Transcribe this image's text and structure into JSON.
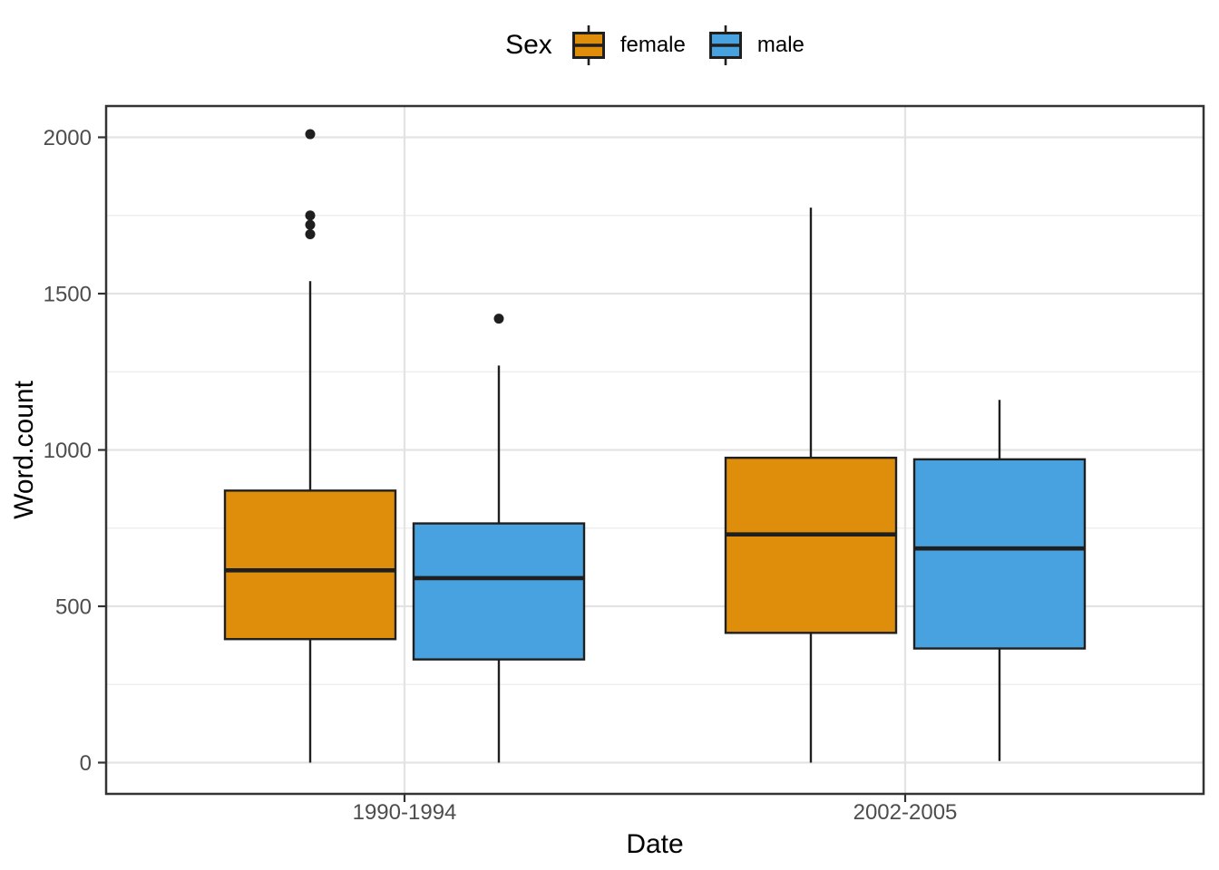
{
  "legend": {
    "title": "Sex",
    "position": "top",
    "items": [
      {
        "label": "female",
        "color": "#DF8E0C"
      },
      {
        "label": "male",
        "color": "#48A2DF"
      }
    ]
  },
  "axes": {
    "x": {
      "title": "Date",
      "categories": [
        "1990-1994",
        "2002-2005"
      ]
    },
    "y": {
      "title": "Word.count",
      "ticks": [
        0,
        500,
        1000,
        1500,
        2000
      ],
      "minor_ticks": [
        250,
        750,
        1250,
        1750
      ],
      "range": [
        -95,
        2100
      ]
    }
  },
  "colors": {
    "female_fill": "#DF8E0C",
    "male_fill": "#48A2DF",
    "box_stroke": "#1F1F1F",
    "outlier": "#1F1F1F",
    "grid_major": "#E3E3E3",
    "grid_minor": "#EFEFEF",
    "panel_border": "#333333",
    "tick_mark": "#333333",
    "axis_text": "#4D4D4D",
    "axis_title": "#000000",
    "background": "#FFFFFF"
  },
  "chart_data": {
    "type": "boxplot",
    "title": "",
    "xlabel": "Date",
    "ylabel": "Word.count",
    "categories": [
      "1990-1994",
      "2002-2005"
    ],
    "ylim": [
      -95,
      2100
    ],
    "y_major_ticks": [
      0,
      500,
      1000,
      1500,
      2000
    ],
    "y_minor_ticks": [
      250,
      750,
      1250,
      1750
    ],
    "grid": true,
    "legend_position": "top",
    "series": [
      {
        "name": "female",
        "color": "#DF8E0C",
        "boxes": [
          {
            "category": "1990-1994",
            "whisker_min": 0,
            "q1": 395,
            "median": 615,
            "q3": 870,
            "whisker_max": 1540,
            "outliers": [
              1690,
              1720,
              1750,
              2010
            ]
          },
          {
            "category": "2002-2005",
            "whisker_min": 0,
            "q1": 415,
            "median": 730,
            "q3": 975,
            "whisker_max": 1775,
            "outliers": []
          }
        ]
      },
      {
        "name": "male",
        "color": "#48A2DF",
        "boxes": [
          {
            "category": "1990-1994",
            "whisker_min": 0,
            "q1": 330,
            "median": 590,
            "q3": 765,
            "whisker_max": 1270,
            "outliers": [
              1420
            ]
          },
          {
            "category": "2002-2005",
            "whisker_min": 5,
            "q1": 365,
            "median": 685,
            "q3": 970,
            "whisker_max": 1160,
            "outliers": []
          }
        ]
      }
    ]
  }
}
